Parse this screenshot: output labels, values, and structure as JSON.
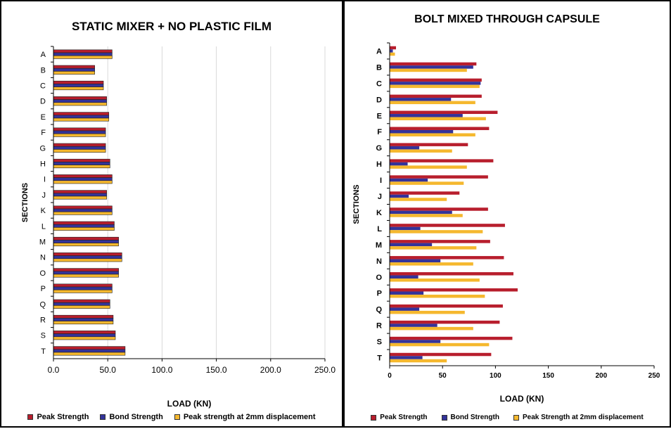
{
  "colors": {
    "peak": "#b81e2d",
    "bond": "#33339a",
    "peak2mm": "#f5b82e",
    "grid": "#d9d9d9",
    "axis": "#000000"
  },
  "chart_data": [
    {
      "type": "bar",
      "orientation": "horizontal",
      "title": "STATIC MIXER + NO PLASTIC FILM",
      "xlabel": "LOAD (KN)",
      "ylabel": "SECTIONS",
      "xlim": [
        0,
        250
      ],
      "xticks": [
        "0.0",
        "50.0",
        "100.0",
        "150.0",
        "200.0",
        "250.0"
      ],
      "grid": "vertical",
      "legend_position": "bottom",
      "categories": [
        "A",
        "B",
        "C",
        "D",
        "E",
        "F",
        "G",
        "H",
        "I",
        "J",
        "K",
        "L",
        "M",
        "N",
        "O",
        "P",
        "Q",
        "R",
        "S",
        "T"
      ],
      "series": [
        {
          "name": "Peak Strength",
          "color_key": "peak",
          "values": [
            54,
            38,
            46,
            49,
            51,
            48,
            48,
            52,
            54,
            49,
            54,
            56,
            60,
            63,
            60,
            54,
            52,
            55,
            57,
            66
          ]
        },
        {
          "name": "Bond Strength",
          "color_key": "bond",
          "values": [
            54,
            38,
            46,
            49,
            51,
            48,
            48,
            52,
            54,
            49,
            54,
            56,
            60,
            63,
            60,
            54,
            52,
            55,
            57,
            66
          ]
        },
        {
          "name": "Peak strength at 2mm displacement",
          "color_key": "peak2mm",
          "values": [
            54,
            38,
            46,
            49,
            51,
            48,
            48,
            52,
            54,
            49,
            54,
            56,
            60,
            63,
            60,
            54,
            52,
            55,
            57,
            66
          ]
        }
      ]
    },
    {
      "type": "bar",
      "orientation": "horizontal",
      "title": "BOLT MIXED THROUGH CAPSULE",
      "xlabel": "LOAD (KN)",
      "ylabel": "SECTIONS",
      "xlim": [
        0,
        250
      ],
      "xticks": [
        "0",
        "50",
        "100",
        "150",
        "200",
        "250"
      ],
      "grid": "none",
      "legend_position": "bottom",
      "categories": [
        "A",
        "B",
        "C",
        "D",
        "E",
        "F",
        "G",
        "H",
        "I",
        "J",
        "K",
        "L",
        "M",
        "N",
        "O",
        "P",
        "Q",
        "R",
        "S",
        "T"
      ],
      "series": [
        {
          "name": "Peak Strength",
          "color_key": "peak",
          "values": [
            6,
            82,
            87,
            87,
            102,
            94,
            74,
            98,
            93,
            66,
            93,
            109,
            95,
            108,
            117,
            121,
            107,
            104,
            116,
            96
          ]
        },
        {
          "name": "Bond Strength",
          "color_key": "bond",
          "values": [
            3,
            79,
            86,
            58,
            69,
            60,
            28,
            17,
            36,
            18,
            59,
            29,
            40,
            48,
            27,
            32,
            28,
            45,
            48,
            31
          ]
        },
        {
          "name": "Peak Strength at 2mm displacement",
          "color_key": "peak2mm",
          "values": [
            5,
            73,
            85,
            81,
            91,
            81,
            59,
            73,
            70,
            54,
            69,
            88,
            82,
            79,
            85,
            90,
            71,
            79,
            94,
            54
          ]
        }
      ]
    }
  ]
}
